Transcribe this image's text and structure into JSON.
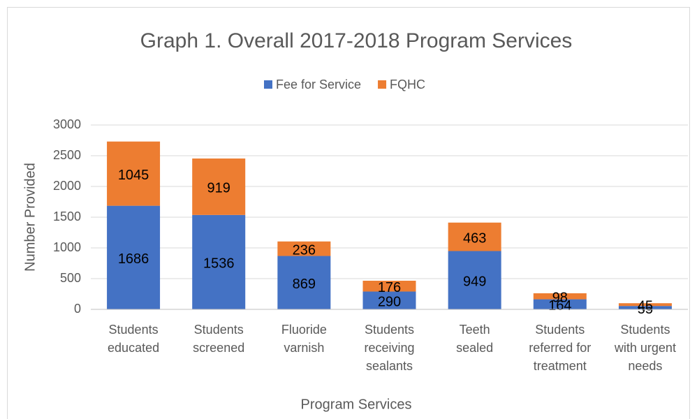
{
  "chart_data": {
    "type": "stacked_bar",
    "title": "Graph 1. Overall 2017-2018 Program Services",
    "x_label": "Program Services",
    "y_label": "Number Provided",
    "categories": [
      "Students educated",
      "Students screened",
      "Fluoride varnish",
      "Students receiving sealants",
      "Teeth sealed",
      "Students referred for treatment",
      "Students with urgent needs"
    ],
    "series": [
      {
        "name": "Fee for Service",
        "color": "#4472c4",
        "values": [
          1686,
          1536,
          869,
          290,
          949,
          164,
          55
        ]
      },
      {
        "name": "FQHC",
        "color": "#ed7d31",
        "values": [
          1045,
          919,
          236,
          176,
          463,
          98,
          45
        ]
      }
    ],
    "ylim": [
      0,
      3000
    ],
    "yticks": [
      0,
      500,
      1000,
      1500,
      2000,
      2500,
      3000
    ],
    "grid": true,
    "legend": "top"
  }
}
